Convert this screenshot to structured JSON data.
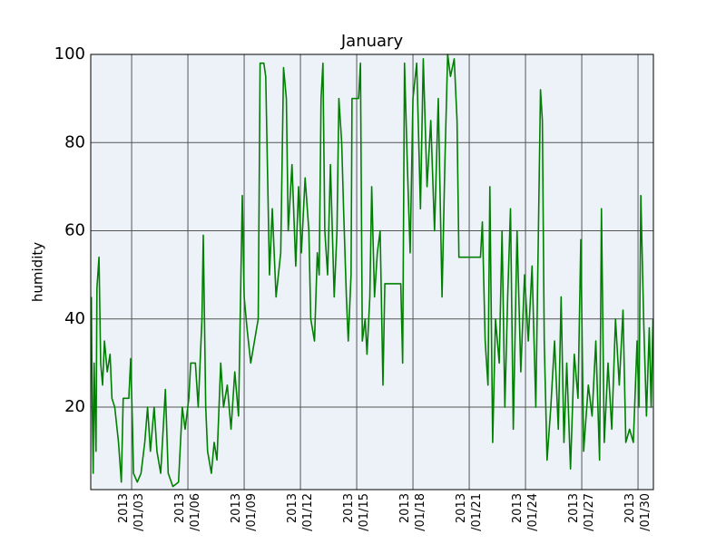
{
  "chart_data": {
    "type": "line",
    "title": "January",
    "y_label": "humidity",
    "x": [
      0.85,
      0.9,
      0.95,
      1.0,
      1.1,
      1.15,
      1.26,
      1.35,
      1.45,
      1.55,
      1.7,
      1.85,
      1.95,
      2.1,
      2.3,
      2.45,
      2.55,
      2.85,
      2.95,
      3.05,
      3.1,
      3.3,
      3.5,
      3.7,
      3.85,
      4.0,
      4.2,
      4.35,
      4.55,
      4.8,
      4.95,
      5.2,
      5.5,
      5.7,
      5.85,
      6.05,
      6.15,
      6.4,
      6.55,
      6.75,
      6.82,
      6.95,
      7.05,
      7.25,
      7.4,
      7.55,
      7.75,
      7.9,
      8.1,
      8.3,
      8.5,
      8.7,
      8.9,
      9.0,
      9.15,
      9.35,
      9.55,
      9.75,
      9.85,
      10.05,
      10.15,
      10.35,
      10.5,
      10.7,
      10.95,
      11.1,
      11.25,
      11.35,
      11.55,
      11.75,
      11.9,
      12.05,
      12.25,
      12.45,
      12.55,
      12.75,
      12.9,
      13.0,
      13.1,
      13.2,
      13.3,
      13.45,
      13.6,
      13.8,
      13.95,
      14.05,
      14.2,
      14.3,
      14.45,
      14.55,
      14.7,
      14.75,
      15.1,
      15.2,
      15.3,
      15.45,
      15.55,
      15.7,
      15.8,
      15.95,
      16.1,
      16.25,
      16.4,
      16.5,
      17.35,
      17.45,
      17.55,
      17.7,
      17.85,
      18.0,
      18.2,
      18.4,
      18.55,
      18.75,
      18.95,
      19.15,
      19.35,
      19.55,
      19.7,
      19.85,
      20.0,
      20.2,
      20.35,
      20.45,
      21.6,
      21.7,
      21.85,
      22.0,
      22.1,
      22.25,
      22.4,
      22.6,
      22.75,
      22.9,
      23.05,
      23.2,
      23.35,
      23.55,
      23.75,
      23.95,
      24.15,
      24.35,
      24.55,
      24.8,
      24.9,
      25.0,
      25.15,
      25.35,
      25.55,
      25.75,
      25.9,
      26.05,
      26.2,
      26.4,
      26.6,
      26.8,
      26.95,
      27.1,
      27.35,
      27.55,
      27.75,
      27.95,
      28.05,
      28.2,
      28.4,
      28.6,
      28.8,
      29.0,
      29.2,
      29.35,
      29.55,
      29.75,
      29.95,
      30.05,
      30.15,
      30.3,
      30.45,
      30.6,
      30.7,
      30.8
    ],
    "series": [
      {
        "name": "humidity",
        "color": "#008000",
        "values": [
          45,
          20,
          5,
          30,
          10,
          47,
          54,
          30,
          25,
          35,
          28,
          32,
          22,
          20,
          12,
          3,
          22,
          22,
          31,
          15,
          5,
          3,
          5,
          12,
          20,
          10,
          20,
          10,
          5,
          24,
          5,
          2,
          3,
          20,
          15,
          22,
          30,
          30,
          20,
          40,
          59,
          20,
          10,
          5,
          12,
          8,
          30,
          20,
          25,
          15,
          28,
          18,
          68,
          45,
          38,
          30,
          35,
          40,
          98,
          98,
          95,
          50,
          65,
          45,
          55,
          97,
          90,
          60,
          75,
          52,
          70,
          55,
          72,
          60,
          40,
          35,
          55,
          50,
          90,
          98,
          60,
          50,
          75,
          45,
          60,
          90,
          80,
          65,
          45,
          35,
          50,
          90,
          90,
          98,
          35,
          40,
          32,
          45,
          70,
          45,
          55,
          60,
          25,
          48,
          48,
          30,
          98,
          75,
          55,
          90,
          98,
          65,
          99,
          70,
          85,
          60,
          90,
          45,
          75,
          100,
          95,
          99,
          85,
          54,
          54,
          62,
          35,
          25,
          70,
          12,
          40,
          30,
          60,
          20,
          45,
          65,
          15,
          60,
          28,
          50,
          35,
          52,
          20,
          92,
          85,
          35,
          8,
          20,
          35,
          15,
          45,
          12,
          30,
          6,
          32,
          22,
          58,
          10,
          25,
          18,
          35,
          8,
          65,
          12,
          30,
          15,
          40,
          25,
          42,
          12,
          15,
          12,
          35,
          20,
          68,
          40,
          18,
          38,
          20,
          40
        ]
      }
    ],
    "xlim": [
      0.82,
      30.82
    ],
    "xticks": [
      {
        "value": 3,
        "label": "2013\n/01/03"
      },
      {
        "value": 6,
        "label": "2013\n/01/06"
      },
      {
        "value": 9,
        "label": "2013\n/01/09"
      },
      {
        "value": 12,
        "label": "2013\n/01/12"
      },
      {
        "value": 15,
        "label": "2013\n/01/15"
      },
      {
        "value": 18,
        "label": "2013\n/01/18"
      },
      {
        "value": 21,
        "label": "2013\n/01/21"
      },
      {
        "value": 24,
        "label": "2013\n/01/24"
      },
      {
        "value": 27,
        "label": "2013\n/01/27"
      },
      {
        "value": 30,
        "label": "2013\n/01/30"
      }
    ],
    "ylim": [
      1.3,
      100
    ],
    "yticks": [
      20,
      40,
      60,
      80,
      100
    ],
    "grid": true
  }
}
